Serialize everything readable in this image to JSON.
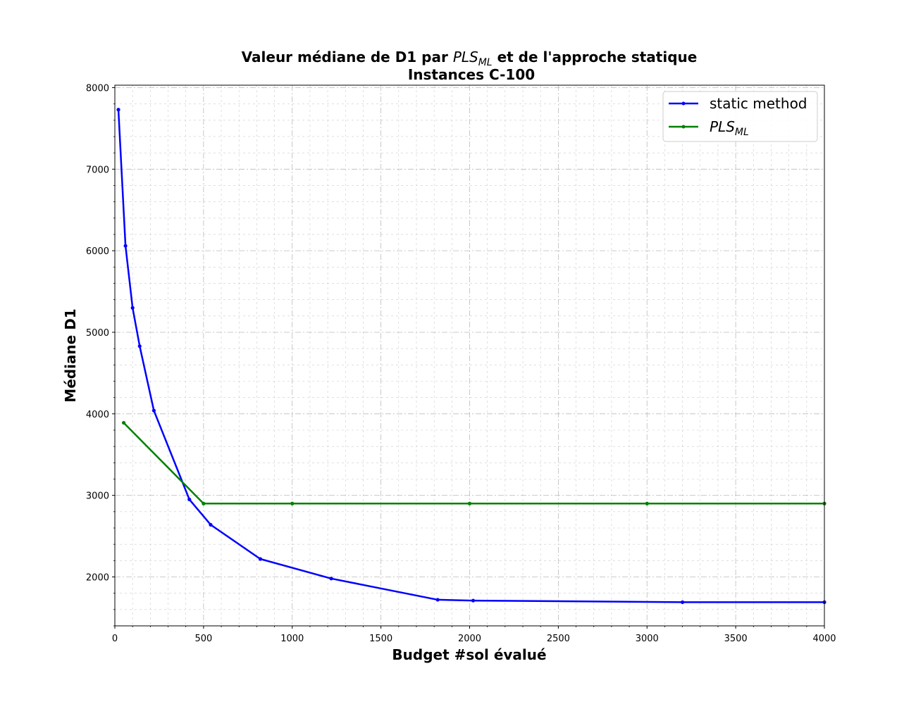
{
  "chart_data": {
    "type": "line",
    "title_prefix": "Valeur médiane de D1 par ",
    "title_math_main": "PLS",
    "title_math_sub": "ML",
    "title_suffix": " et de l'approche statique",
    "title_line2": "Instances  C-100",
    "xlabel": "Budget #sol évalué",
    "ylabel": "Médiane D1",
    "xlim": [
      0,
      4000
    ],
    "ylim": [
      1400,
      8030
    ],
    "xticks": [
      0,
      500,
      1000,
      1500,
      2000,
      2500,
      3000,
      3500,
      4000
    ],
    "yticks": [
      2000,
      3000,
      4000,
      5000,
      6000,
      7000,
      8000
    ],
    "x_minor_step": 100,
    "y_minor_step": 200,
    "grid": true,
    "legend_position": "top-right",
    "series": [
      {
        "name": "static method",
        "color": "#0000ff",
        "x": [
          20,
          60,
          100,
          140,
          220,
          420,
          540,
          820,
          1220,
          1820,
          2020,
          3200,
          4000
        ],
        "y": [
          7730,
          6060,
          5300,
          4830,
          4040,
          2950,
          2640,
          2220,
          1980,
          1720,
          1710,
          1690,
          1690
        ]
      },
      {
        "name_math_main": "PLS",
        "name_math_sub": "ML",
        "color": "#008000",
        "x": [
          50,
          500,
          1000,
          2000,
          3000,
          4000
        ],
        "y": [
          3890,
          2900,
          2900,
          2900,
          2900,
          2900
        ]
      }
    ]
  }
}
